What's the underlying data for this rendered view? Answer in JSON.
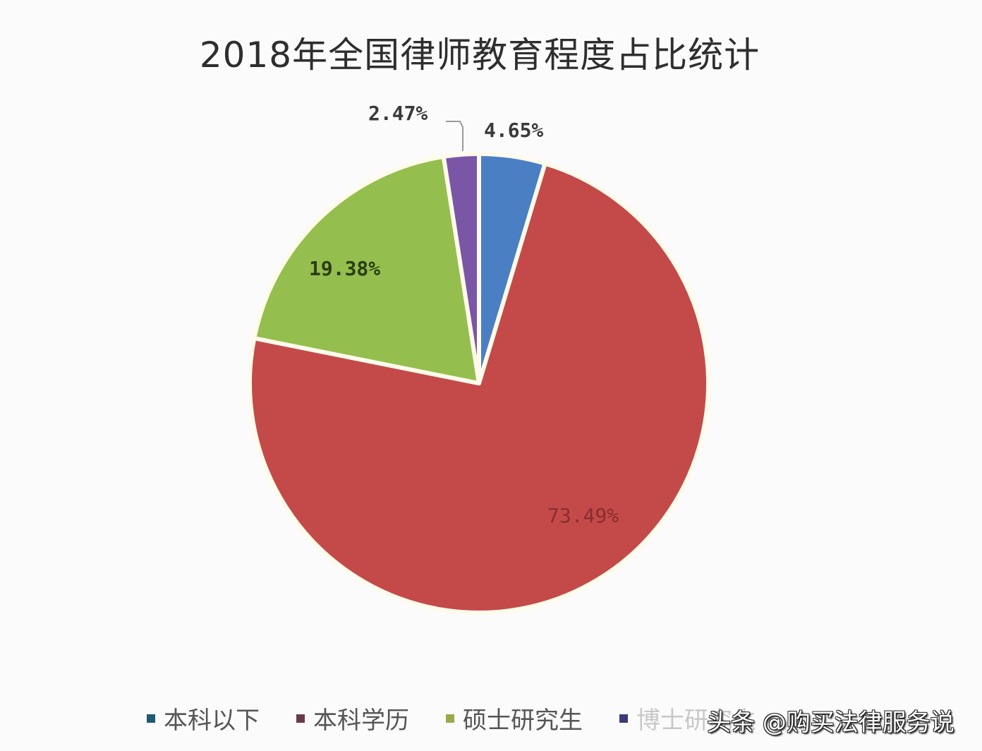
{
  "title": "2018年全国律师教育程度占比统计",
  "chart_data": {
    "type": "pie",
    "title": "2018年全国律师教育程度占比统计",
    "start_angle": "12 o'clock, clockwise",
    "categories": [
      "本科以下",
      "本科学历",
      "硕士研究生",
      "博士研究生"
    ],
    "values": [
      4.65,
      73.49,
      19.38,
      2.47
    ],
    "value_labels": [
      "4.65%",
      "73.49%",
      "19.38%",
      "2.47%"
    ],
    "colors": [
      "#4a7fc4",
      "#c44a4a",
      "#94be4e",
      "#7b56a6"
    ],
    "legend_position": "bottom",
    "slice_border_color": "#fffbea"
  },
  "legend": {
    "items": [
      {
        "label": "本科以下",
        "color": "#1f5a73"
      },
      {
        "label": "本科学历",
        "color": "#6b3a4a"
      },
      {
        "label": "硕士研究生",
        "color": "#9aa84a"
      },
      {
        "label": "博士研究生",
        "color": "#3a3a7a"
      }
    ]
  },
  "labels": {
    "blue": "4.65%",
    "red": "73.49%",
    "green": "19.38%",
    "purple": "2.47%"
  },
  "watermark": "头条 @购买法律服务说"
}
